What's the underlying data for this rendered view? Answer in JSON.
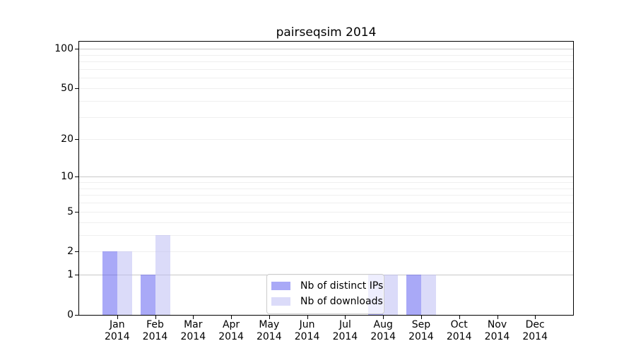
{
  "chart_data": {
    "type": "bar",
    "title": "pairseqsim 2014",
    "categories": [
      "Jan 2014",
      "Feb 2014",
      "Mar 2014",
      "Apr 2014",
      "May 2014",
      "Jun 2014",
      "Jul 2014",
      "Aug 2014",
      "Sep 2014",
      "Oct 2014",
      "Nov 2014",
      "Dec 2014"
    ],
    "month_labels": [
      "Jan",
      "Feb",
      "Mar",
      "Apr",
      "May",
      "Jun",
      "Jul",
      "Aug",
      "Sep",
      "Oct",
      "Nov",
      "Dec"
    ],
    "year_label": "2014",
    "series": [
      {
        "name": "Nb of distinct IPs",
        "values": [
          2,
          1,
          0,
          0,
          0,
          0,
          0,
          1,
          1,
          0,
          0,
          0
        ],
        "color": "rgba(83,83,239,0.5)"
      },
      {
        "name": "Nb of downloads",
        "values": [
          2,
          3,
          0,
          0,
          0,
          0,
          0,
          1,
          1,
          0,
          0,
          0
        ],
        "color": "rgba(183,183,243,0.5)"
      }
    ],
    "xlabel": "",
    "ylabel": "",
    "yaxis": {
      "scale": "log10(1+v)",
      "ticks": [
        0,
        1,
        2,
        5,
        10,
        20,
        50,
        100
      ],
      "range": [
        0,
        113
      ]
    },
    "grid": {
      "emphasized_lines": [
        1,
        10,
        100
      ],
      "minor_lines": [
        2,
        3,
        4,
        5,
        6,
        7,
        8,
        9,
        20,
        30,
        40,
        50,
        60,
        70,
        80,
        90
      ]
    },
    "legend": {
      "position": "lower center"
    }
  },
  "colors": {
    "bar_distinct_ips": "rgba(83,83,239,0.5)",
    "bar_downloads": "rgba(183,183,243,0.5)",
    "grid_emphasized": "#c8c8c8",
    "grid_minor": "#efefef",
    "axis": "#000000"
  }
}
